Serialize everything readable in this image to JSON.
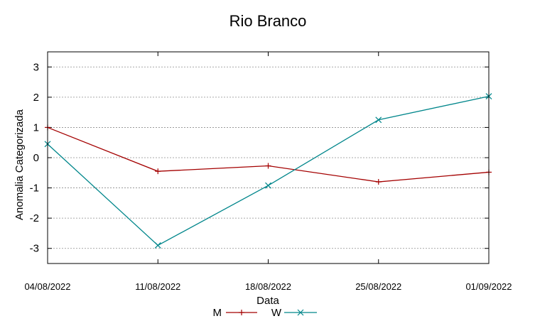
{
  "chart_data": {
    "type": "line",
    "title": "Rio Branco",
    "xlabel": "Data",
    "ylabel": "Anomalia Categorizada",
    "categories": [
      "04/08/2022",
      "11/08/2022",
      "18/08/2022",
      "25/08/2022",
      "01/09/2022"
    ],
    "yticks": [
      "-3",
      "-2",
      "-1",
      "0",
      "1",
      "2",
      "3"
    ],
    "ylim": [
      -3.5,
      3.5
    ],
    "grid": true,
    "legend_position": "bottom",
    "series": [
      {
        "name": "M",
        "marker": "plus",
        "color": "#a40000",
        "values": [
          1.0,
          -0.45,
          -0.27,
          -0.8,
          -0.48
        ]
      },
      {
        "name": "W",
        "marker": "cross",
        "color": "#00868b",
        "values": [
          0.45,
          -2.9,
          -0.92,
          1.25,
          2.03
        ]
      }
    ]
  }
}
